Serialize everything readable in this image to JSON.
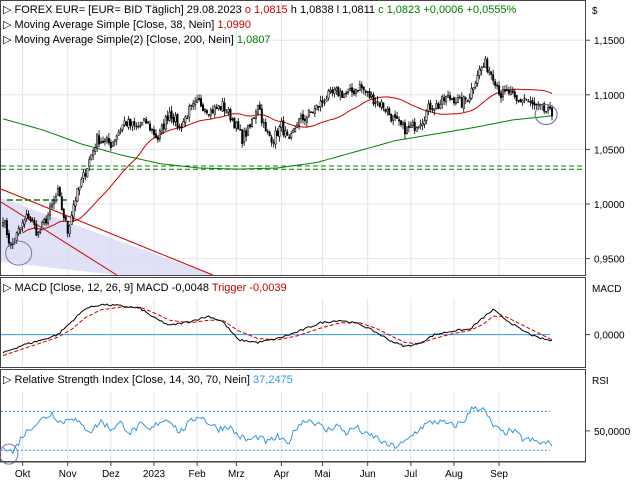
{
  "colors": {
    "up": "#ffffff",
    "down": "#000000",
    "wick": "#000000",
    "sma38": "#cc0000",
    "sma200": "#008000",
    "macd": "#000000",
    "trigger": "#cc0000",
    "rsi": "#3399dd",
    "channel": "#cc0000",
    "channel_fill": "#d8d8f4",
    "support": "#008000",
    "rsi_band": "#3399dd",
    "grid": "#e4e4e4",
    "zero": "#3399dd",
    "circle": "#7777aa"
  },
  "chart_data": [
    {
      "type": "candlestick",
      "title": "FOREX EUR= [EUR= BID Täglich]",
      "date": "29.08.2023",
      "ohlc_labels": {
        "o_label": "o",
        "o": "1,0815",
        "h_label": "h",
        "h": "1,0838",
        "l_label": "l",
        "l": "1,0811",
        "c_label": "c",
        "c": "1,0823",
        "change": "+0,0006",
        "change_pct": "+0,0555%"
      },
      "currency_label": "$",
      "ylim": [
        0.935,
        1.185
      ],
      "y_ticks": [
        0.95,
        1.0,
        1.05,
        1.1,
        1.15
      ],
      "y_tick_labels": [
        "0,9500",
        "1,0000",
        "1,0500",
        "1,1000",
        "1,1500"
      ],
      "indicators": [
        {
          "name": "Moving Average Simple",
          "params": "[Close, 38, Nein]",
          "value": "1,0990",
          "color": "sma38"
        },
        {
          "name": "Moving Average Simple(2)",
          "params": "[Close, 200, Nein]",
          "value": "1,0807",
          "color": "sma200"
        }
      ],
      "grid": true,
      "support_levels": [
        1.0348,
        1.0318
      ],
      "close_anchors": [
        [
          0,
          0.988
        ],
        [
          4,
          0.96
        ],
        [
          8,
          0.975
        ],
        [
          13,
          0.99
        ],
        [
          18,
          0.972
        ],
        [
          23,
          0.99
        ],
        [
          28,
          1.01
        ],
        [
          33,
          0.975
        ],
        [
          36,
          1.0
        ],
        [
          42,
          1.03
        ],
        [
          48,
          1.06
        ],
        [
          55,
          1.055
        ],
        [
          62,
          1.075
        ],
        [
          68,
          1.07
        ],
        [
          73,
          1.075
        ],
        [
          79,
          1.06
        ],
        [
          85,
          1.085
        ],
        [
          90,
          1.07
        ],
        [
          95,
          1.085
        ],
        [
          100,
          1.093
        ],
        [
          106,
          1.085
        ],
        [
          112,
          1.09
        ],
        [
          117,
          1.078
        ],
        [
          122,
          1.06
        ],
        [
          126,
          1.07
        ],
        [
          130,
          1.093
        ],
        [
          134,
          1.065
        ],
        [
          138,
          1.06
        ],
        [
          142,
          1.072
        ],
        [
          146,
          1.055
        ],
        [
          150,
          1.075
        ],
        [
          155,
          1.08
        ],
        [
          160,
          1.088
        ],
        [
          165,
          1.098
        ],
        [
          170,
          1.102
        ],
        [
          176,
          1.1
        ],
        [
          182,
          1.108
        ],
        [
          186,
          1.1
        ],
        [
          190,
          1.095
        ],
        [
          194,
          1.09
        ],
        [
          198,
          1.08
        ],
        [
          202,
          1.072
        ],
        [
          206,
          1.068
        ],
        [
          210,
          1.072
        ],
        [
          214,
          1.078
        ],
        [
          218,
          1.09
        ],
        [
          222,
          1.09
        ],
        [
          226,
          1.097
        ],
        [
          230,
          1.097
        ],
        [
          234,
          1.092
        ],
        [
          238,
          1.1
        ],
        [
          242,
          1.12
        ],
        [
          246,
          1.128
        ],
        [
          250,
          1.118
        ],
        [
          254,
          1.1
        ],
        [
          258,
          1.102
        ],
        [
          262,
          1.093
        ],
        [
          266,
          1.097
        ],
        [
          270,
          1.09
        ],
        [
          274,
          1.087
        ],
        [
          277,
          1.085
        ],
        [
          280,
          1.082
        ]
      ],
      "sma200_series": [
        [
          0,
          1.078
        ],
        [
          20,
          1.068
        ],
        [
          40,
          1.055
        ],
        [
          60,
          1.045
        ],
        [
          80,
          1.037
        ],
        [
          100,
          1.033
        ],
        [
          120,
          1.032
        ],
        [
          140,
          1.033
        ],
        [
          160,
          1.038
        ],
        [
          180,
          1.048
        ],
        [
          200,
          1.058
        ],
        [
          220,
          1.064
        ],
        [
          240,
          1.07
        ],
        [
          260,
          1.077
        ],
        [
          280,
          1.0807
        ]
      ]
    },
    {
      "type": "line",
      "title": "MACD",
      "params": "[Close, 12, 26, 9]",
      "series_labels": {
        "macd_label": "MACD",
        "macd_value": "-0,0048",
        "trigger_label": "Trigger",
        "trigger_value": "-0,0039"
      },
      "axis_label": "MACD",
      "ylim": [
        -0.024,
        0.028
      ],
      "y_ticks": [
        0.0
      ],
      "y_tick_labels": [
        "0,0000"
      ],
      "grid": true,
      "macd_anchors": [
        [
          0,
          -0.014
        ],
        [
          10,
          -0.008
        ],
        [
          20,
          -0.004
        ],
        [
          28,
          0.0
        ],
        [
          35,
          0.01
        ],
        [
          42,
          0.02
        ],
        [
          50,
          0.023
        ],
        [
          60,
          0.022
        ],
        [
          70,
          0.02
        ],
        [
          78,
          0.012
        ],
        [
          85,
          0.007
        ],
        [
          95,
          0.01
        ],
        [
          105,
          0.014
        ],
        [
          112,
          0.01
        ],
        [
          120,
          -0.004
        ],
        [
          130,
          -0.006
        ],
        [
          140,
          -0.003
        ],
        [
          150,
          0.002
        ],
        [
          162,
          0.009
        ],
        [
          172,
          0.011
        ],
        [
          182,
          0.008
        ],
        [
          190,
          0.002
        ],
        [
          198,
          -0.005
        ],
        [
          205,
          -0.009
        ],
        [
          212,
          -0.007
        ],
        [
          220,
          0.0
        ],
        [
          230,
          0.003
        ],
        [
          238,
          0.004
        ],
        [
          245,
          0.013
        ],
        [
          250,
          0.019
        ],
        [
          256,
          0.012
        ],
        [
          264,
          0.004
        ],
        [
          272,
          -0.002
        ],
        [
          280,
          -0.0048
        ]
      ],
      "trigger_anchors": [
        [
          0,
          -0.016
        ],
        [
          10,
          -0.011
        ],
        [
          20,
          -0.006
        ],
        [
          28,
          -0.002
        ],
        [
          35,
          0.004
        ],
        [
          42,
          0.013
        ],
        [
          50,
          0.019
        ],
        [
          60,
          0.021
        ],
        [
          70,
          0.021
        ],
        [
          78,
          0.016
        ],
        [
          85,
          0.011
        ],
        [
          95,
          0.009
        ],
        [
          105,
          0.011
        ],
        [
          112,
          0.011
        ],
        [
          120,
          0.003
        ],
        [
          130,
          -0.003
        ],
        [
          140,
          -0.004
        ],
        [
          150,
          -0.001
        ],
        [
          162,
          0.005
        ],
        [
          172,
          0.009
        ],
        [
          182,
          0.009
        ],
        [
          190,
          0.005
        ],
        [
          198,
          -0.001
        ],
        [
          205,
          -0.006
        ],
        [
          212,
          -0.007
        ],
        [
          220,
          -0.003
        ],
        [
          230,
          0.001
        ],
        [
          238,
          0.003
        ],
        [
          245,
          0.008
        ],
        [
          250,
          0.014
        ],
        [
          256,
          0.014
        ],
        [
          264,
          0.008
        ],
        [
          272,
          0.002
        ],
        [
          280,
          -0.0039
        ]
      ]
    },
    {
      "type": "line",
      "title": "Relative Strength Index",
      "params": "[Close, 14, 30, 70, Nein]",
      "value": "37,2475",
      "axis_label": "RSI",
      "ylim": [
        20,
        90
      ],
      "y_ticks": [
        50
      ],
      "y_tick_labels": [
        "50,0000"
      ],
      "bands": [
        30,
        70
      ],
      "grid": true,
      "rsi_anchors": [
        [
          0,
          35
        ],
        [
          5,
          28
        ],
        [
          10,
          45
        ],
        [
          15,
          55
        ],
        [
          20,
          62
        ],
        [
          25,
          68
        ],
        [
          30,
          58
        ],
        [
          35,
          65
        ],
        [
          40,
          55
        ],
        [
          45,
          50
        ],
        [
          50,
          60
        ],
        [
          55,
          52
        ],
        [
          60,
          58
        ],
        [
          65,
          48
        ],
        [
          70,
          56
        ],
        [
          75,
          50
        ],
        [
          80,
          60
        ],
        [
          85,
          62
        ],
        [
          90,
          48
        ],
        [
          95,
          58
        ],
        [
          100,
          66
        ],
        [
          105,
          58
        ],
        [
          110,
          52
        ],
        [
          115,
          55
        ],
        [
          120,
          45
        ],
        [
          125,
          40
        ],
        [
          130,
          44
        ],
        [
          135,
          38
        ],
        [
          140,
          44
        ],
        [
          145,
          36
        ],
        [
          150,
          55
        ],
        [
          155,
          62
        ],
        [
          160,
          58
        ],
        [
          165,
          50
        ],
        [
          170,
          56
        ],
        [
          175,
          48
        ],
        [
          180,
          54
        ],
        [
          185,
          46
        ],
        [
          190,
          44
        ],
        [
          195,
          36
        ],
        [
          200,
          34
        ],
        [
          205,
          38
        ],
        [
          210,
          48
        ],
        [
          215,
          56
        ],
        [
          220,
          60
        ],
        [
          225,
          58
        ],
        [
          230,
          55
        ],
        [
          235,
          60
        ],
        [
          240,
          75
        ],
        [
          245,
          72
        ],
        [
          250,
          55
        ],
        [
          255,
          48
        ],
        [
          260,
          50
        ],
        [
          265,
          42
        ],
        [
          270,
          40
        ],
        [
          275,
          37
        ],
        [
          280,
          37.2
        ]
      ]
    }
  ],
  "x_axis": {
    "n_bars": 281,
    "labels": [
      {
        "text": "Okt",
        "bar": 10
      },
      {
        "text": "Nov",
        "bar": 33
      },
      {
        "text": "Dez",
        "bar": 55
      },
      {
        "text": "2023",
        "bar": 77
      },
      {
        "text": "Feb",
        "bar": 99
      },
      {
        "text": "Mrz",
        "bar": 119
      },
      {
        "text": "Apr",
        "bar": 142
      },
      {
        "text": "Mai",
        "bar": 163
      },
      {
        "text": "Jun",
        "bar": 186
      },
      {
        "text": "Jul",
        "bar": 208
      },
      {
        "text": "Aug",
        "bar": 230
      },
      {
        "text": "Sep",
        "bar": 253
      }
    ]
  }
}
